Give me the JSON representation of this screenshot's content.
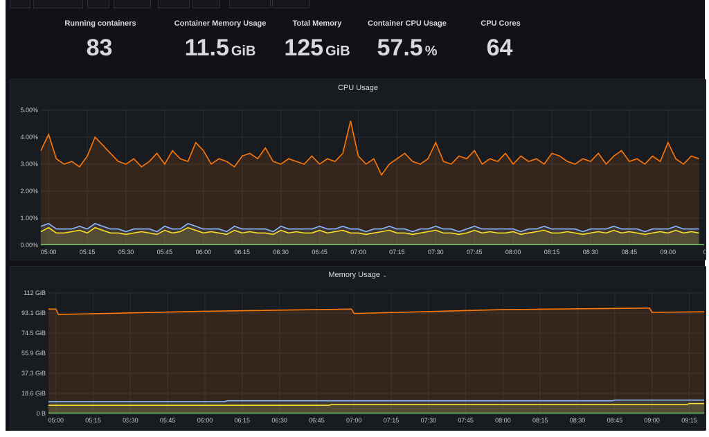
{
  "stats": [
    {
      "title": "Running containers",
      "value": "83",
      "unit": ""
    },
    {
      "title": "Container Memory Usage",
      "value": "11.5",
      "unit": "GiB"
    },
    {
      "title": "Total Memory",
      "value": "125",
      "unit": "GiB"
    },
    {
      "title": "Container CPU Usage",
      "value": "57.5",
      "unit": "%"
    },
    {
      "title": "CPU Cores",
      "value": "64",
      "unit": ""
    }
  ],
  "cpu_panel": {
    "title": "CPU Usage"
  },
  "memory_panel": {
    "title": "Memory Usage",
    "menu_icon": "chevron-down-icon"
  },
  "colors": {
    "orange": "#ff780a",
    "blue": "#8ab8ff",
    "yellow": "#fade2a",
    "green": "#73bf69",
    "bg": "#111217",
    "panel": "#181b1f"
  },
  "chart_data": [
    {
      "type": "line",
      "title": "CPU Usage",
      "ylabel": "",
      "xlabel": "",
      "ylim": [
        0,
        5
      ],
      "y_ticks": [
        "0.00%",
        "1.00%",
        "2.00%",
        "3.00%",
        "4.00%",
        "5.00%"
      ],
      "x_ticks": [
        "05:00",
        "05:15",
        "05:30",
        "05:45",
        "06:00",
        "06:15",
        "06:30",
        "06:45",
        "07:00",
        "07:15",
        "07:30",
        "07:45",
        "08:00",
        "08:15",
        "08:30",
        "08:45",
        "09:00",
        "09"
      ],
      "x_minutes_from_0500_range": [
        -3,
        254
      ],
      "x_step_minutes": 3,
      "series": [
        {
          "name": "orange",
          "color": "#ff780a",
          "values": [
            3.5,
            4.1,
            3.2,
            3.0,
            3.1,
            2.9,
            3.3,
            4.0,
            3.7,
            3.4,
            3.1,
            3.0,
            3.2,
            2.9,
            3.1,
            3.4,
            3.0,
            3.5,
            3.2,
            3.1,
            3.8,
            3.5,
            3.0,
            3.2,
            3.1,
            2.9,
            3.3,
            3.4,
            3.2,
            3.6,
            3.1,
            3.0,
            3.2,
            3.1,
            3.0,
            3.3,
            3.0,
            3.2,
            3.1,
            3.4,
            4.6,
            3.3,
            3.0,
            3.2,
            2.6,
            3.0,
            3.2,
            3.4,
            3.1,
            3.0,
            3.2,
            3.8,
            3.1,
            3.0,
            3.3,
            3.2,
            3.5,
            3.0,
            3.2,
            3.1,
            3.4,
            3.0,
            3.3,
            3.1,
            3.2,
            3.0,
            3.4,
            3.3,
            3.1,
            3.0,
            3.2,
            3.1,
            3.4,
            3.0,
            3.3,
            3.5,
            3.1,
            3.2,
            3.0,
            3.3,
            3.1,
            3.8,
            3.2,
            3.0,
            3.3,
            3.2,
            3.1
          ]
        },
        {
          "name": "blue",
          "color": "#8ab8ff",
          "values": [
            0.7,
            0.8,
            0.6,
            0.6,
            0.6,
            0.7,
            0.6,
            0.8,
            0.7,
            0.6,
            0.6,
            0.5,
            0.6,
            0.6,
            0.6,
            0.5,
            0.7,
            0.6,
            0.6,
            0.8,
            0.7,
            0.6,
            0.6,
            0.6,
            0.5,
            0.7,
            0.6,
            0.6,
            0.6,
            0.6,
            0.5,
            0.7,
            0.6,
            0.6,
            0.6,
            0.6,
            0.7,
            0.6,
            0.6,
            0.7,
            0.6,
            0.6,
            0.5,
            0.6,
            0.6,
            0.7,
            0.6,
            0.6,
            0.5,
            0.6,
            0.6,
            0.7,
            0.6,
            0.6,
            0.5,
            0.6,
            0.7,
            0.6,
            0.6,
            0.6,
            0.6,
            0.6,
            0.5,
            0.6,
            0.6,
            0.7,
            0.6,
            0.6,
            0.6,
            0.6,
            0.5,
            0.6,
            0.6,
            0.6,
            0.7,
            0.6,
            0.6,
            0.6,
            0.5,
            0.6,
            0.6,
            0.6,
            0.7,
            0.6,
            0.6,
            0.6,
            0.6
          ]
        },
        {
          "name": "yellow",
          "color": "#fade2a",
          "values": [
            0.5,
            0.65,
            0.45,
            0.45,
            0.5,
            0.55,
            0.45,
            0.65,
            0.55,
            0.45,
            0.45,
            0.4,
            0.45,
            0.5,
            0.45,
            0.4,
            0.55,
            0.45,
            0.5,
            0.65,
            0.55,
            0.45,
            0.5,
            0.45,
            0.4,
            0.55,
            0.45,
            0.5,
            0.45,
            0.45,
            0.4,
            0.55,
            0.45,
            0.5,
            0.45,
            0.45,
            0.55,
            0.45,
            0.5,
            0.55,
            0.45,
            0.45,
            0.4,
            0.45,
            0.5,
            0.55,
            0.45,
            0.45,
            0.4,
            0.45,
            0.5,
            0.55,
            0.45,
            0.45,
            0.4,
            0.45,
            0.55,
            0.45,
            0.5,
            0.45,
            0.45,
            0.5,
            0.4,
            0.45,
            0.5,
            0.55,
            0.45,
            0.45,
            0.5,
            0.45,
            0.4,
            0.45,
            0.5,
            0.45,
            0.55,
            0.45,
            0.5,
            0.45,
            0.4,
            0.45,
            0.5,
            0.45,
            0.55,
            0.45,
            0.5,
            0.45,
            0.45
          ]
        },
        {
          "name": "green",
          "color": "#73bf69",
          "values": [
            0.02
          ]
        }
      ]
    },
    {
      "type": "line",
      "title": "Memory Usage",
      "ylim": [
        0,
        112
      ],
      "y_ticks": [
        "0 B",
        "18.6 GiB",
        "37.3 GiB",
        "55.9 GiB",
        "74.5 GiB",
        "93.1 GiB",
        "112 GiB"
      ],
      "x_ticks": [
        "05:00",
        "05:15",
        "05:30",
        "05:45",
        "06:00",
        "06:15",
        "06:30",
        "06:45",
        "07:00",
        "07:15",
        "07:30",
        "07:45",
        "08:00",
        "08:15",
        "08:30",
        "08:45",
        "09:00",
        "09:15"
      ],
      "x_minutes_from_0500_range": [
        -3,
        261
      ],
      "series": [
        {
          "name": "orange",
          "color": "#ff780a",
          "points": [
            [
              -3,
              97
            ],
            [
              0,
              97
            ],
            [
              1,
              92
            ],
            [
              60,
              95
            ],
            [
              119,
              97
            ],
            [
              120,
              93
            ],
            [
              122,
              93
            ],
            [
              180,
              96.5
            ],
            [
              239,
              98
            ],
            [
              240,
              94
            ],
            [
              261,
              94.5
            ]
          ]
        },
        {
          "name": "blue",
          "color": "#8ab8ff",
          "points": [
            [
              -3,
              11
            ],
            [
              68,
              11
            ],
            [
              69,
              11.8
            ],
            [
              224,
              11.8
            ],
            [
              225,
              12.4
            ],
            [
              261,
              12.4
            ]
          ]
        },
        {
          "name": "yellow",
          "color": "#fade2a",
          "points": [
            [
              -3,
              7.6
            ],
            [
              110,
              7.6
            ],
            [
              111,
              8.3
            ],
            [
              254,
              8.3
            ],
            [
              255,
              9.2
            ],
            [
              261,
              9.2
            ]
          ]
        },
        {
          "name": "green",
          "color": "#73bf69",
          "points": [
            [
              -3,
              0.4
            ],
            [
              261,
              0.4
            ]
          ]
        }
      ]
    }
  ]
}
